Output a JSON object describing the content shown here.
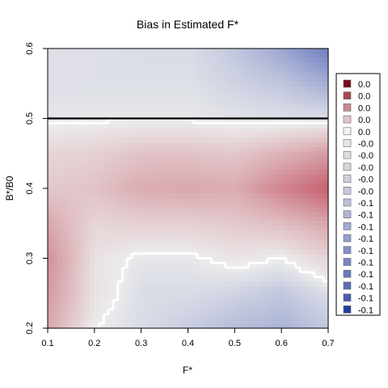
{
  "chart_data": {
    "type": "heatmap",
    "title": "Bias in Estimated F*",
    "xlabel": "F*",
    "ylabel": "B*/B0",
    "xlim": [
      0.1,
      0.7
    ],
    "ylim": [
      0.2,
      0.6
    ],
    "x_ticks": [
      "0.1",
      "0.2",
      "0.3",
      "0.4",
      "0.5",
      "0.6",
      "0.7"
    ],
    "y_ticks": [
      "0.2",
      "0.3",
      "0.4",
      "0.5",
      "0.6"
    ],
    "reference_line": {
      "y": 0.5,
      "color": "#000000"
    },
    "legend_position": "right",
    "legend": {
      "labels": [
        "0.0",
        "0.0",
        "0.0",
        "0.0",
        "0.0",
        "-0.0",
        "-0.0",
        "-0.0",
        "-0.0",
        "-0.0",
        "-0.1",
        "-0.1",
        "-0.1",
        "-0.1",
        "-0.1",
        "-0.1",
        "-0.1",
        "-0.1",
        "-0.1",
        "-0.1"
      ],
      "colors": [
        "#7a0b17",
        "#a84a55",
        "#c8888f",
        "#e6c5c8",
        "#f4f4f4",
        "#e6e6e6",
        "#dedee0",
        "#d6d6dd",
        "#cdd0de",
        "#c4c8de",
        "#b9bfdc",
        "#adb4d8",
        "#a0a9d4",
        "#939ecf",
        "#8592ca",
        "#7886c5",
        "#6a79bf",
        "#5b6bb9",
        "#4a5cb2",
        "#1e3f9b"
      ]
    },
    "palette": {
      "positive_high": "#c04a5a",
      "neutral": "#ececec",
      "negative_high": "#4a5eb5",
      "contour": "#ffffff"
    },
    "surface": {
      "x": [
        0.1,
        0.2,
        0.3,
        0.4,
        0.5,
        0.6,
        0.7
      ],
      "y": [
        0.2,
        0.25,
        0.3,
        0.35,
        0.4,
        0.45,
        0.5,
        0.55,
        0.6
      ],
      "z": [
        [
          0.03,
          0.0,
          -0.005,
          -0.01,
          -0.015,
          -0.018,
          -0.012
        ],
        [
          0.035,
          0.005,
          -0.005,
          -0.005,
          -0.008,
          -0.012,
          -0.005
        ],
        [
          0.04,
          0.005,
          -0.002,
          -0.002,
          0.003,
          0.0,
          0.01
        ],
        [
          0.03,
          0.01,
          0.012,
          0.012,
          0.015,
          0.02,
          0.03
        ],
        [
          0.015,
          0.018,
          0.028,
          0.03,
          0.028,
          0.045,
          0.06
        ],
        [
          0.01,
          0.012,
          0.018,
          0.018,
          0.016,
          0.025,
          0.035
        ],
        [
          -0.002,
          -0.001,
          -0.001,
          -0.001,
          -0.003,
          -0.004,
          -0.004
        ],
        [
          -0.004,
          -0.004,
          -0.004,
          -0.004,
          -0.008,
          -0.012,
          -0.02
        ],
        [
          -0.004,
          -0.004,
          -0.005,
          -0.005,
          -0.012,
          -0.022,
          -0.035
        ]
      ]
    }
  }
}
